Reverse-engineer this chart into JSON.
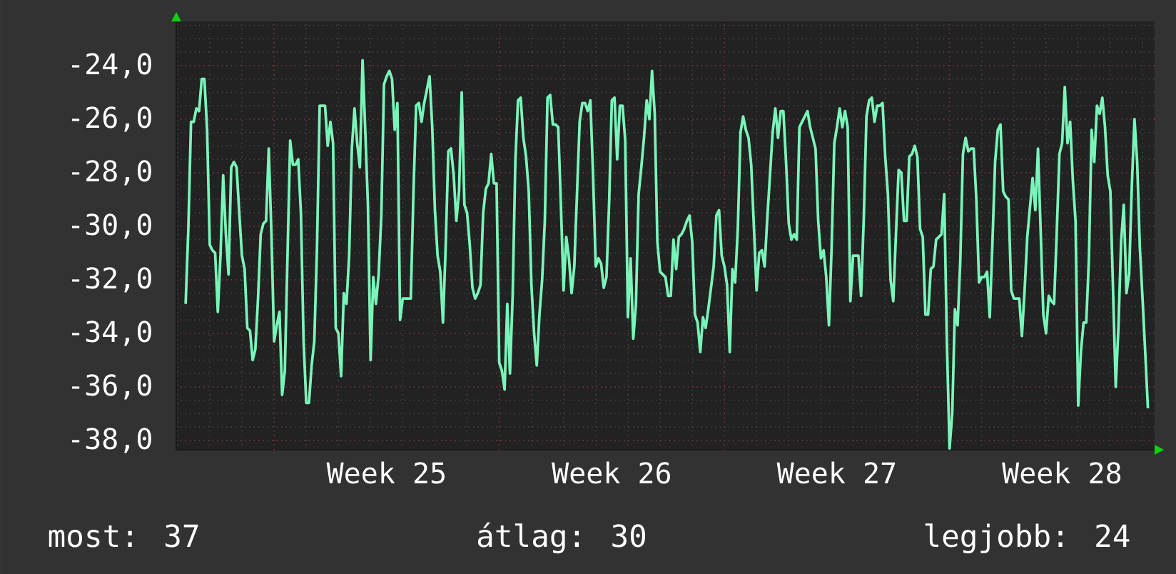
{
  "chart_data": {
    "type": "line",
    "color": "#7af5b9",
    "categories": [
      null,
      null,
      null,
      null,
      null,
      null,
      null,
      null,
      null,
      null,
      null,
      null,
      null,
      null,
      null,
      null,
      null,
      null,
      null,
      null,
      null,
      null,
      null,
      null,
      null,
      null,
      null,
      null,
      null,
      null,
      null,
      null,
      null,
      null,
      null,
      null,
      null,
      null,
      null,
      null,
      null,
      null,
      null,
      null,
      null,
      null,
      null,
      null,
      null,
      null,
      null,
      null,
      null,
      null,
      null,
      null,
      null,
      null,
      null,
      null,
      null,
      null,
      null,
      null,
      null,
      null,
      null,
      null,
      null,
      null,
      null,
      null,
      null,
      null,
      null,
      null,
      null,
      null,
      "Week 25",
      null,
      null,
      null,
      null,
      null,
      null,
      null,
      null,
      null,
      null,
      null,
      null,
      null,
      null,
      null,
      null,
      null,
      null,
      null,
      null,
      null,
      null,
      null,
      null,
      null,
      null,
      null,
      null,
      null,
      null,
      null,
      null,
      null,
      null,
      null,
      null,
      null,
      null,
      null,
      null,
      null,
      null,
      null,
      null,
      null,
      null,
      null,
      null,
      null,
      null,
      null,
      null,
      null,
      null,
      null,
      null,
      null,
      null,
      null,
      null,
      null,
      null,
      null,
      null,
      null,
      null,
      null,
      null,
      null,
      null,
      null,
      null,
      null,
      null,
      null,
      null,
      null,
      null,
      null,
      null,
      null,
      null,
      null,
      "Week 26",
      null,
      null,
      null,
      null,
      null,
      null,
      null,
      null,
      null,
      null,
      null,
      null,
      null,
      null,
      null,
      null,
      null,
      null,
      null,
      null,
      null,
      null,
      null,
      null,
      null,
      null,
      null,
      null,
      null,
      null,
      null,
      null,
      null,
      null,
      null,
      null,
      null,
      null,
      null,
      null,
      null,
      null,
      null,
      null,
      null,
      null,
      null,
      null,
      null,
      null,
      null,
      null,
      null,
      null,
      null,
      null,
      null,
      null,
      null,
      null,
      null,
      null,
      null,
      null,
      null,
      null,
      null,
      null,
      null,
      null,
      null,
      null,
      null,
      null,
      null,
      null,
      null,
      null,
      null,
      null,
      null,
      null,
      null,
      "Week 27",
      null,
      null,
      null,
      null,
      null,
      null,
      null,
      null,
      null,
      null,
      null,
      null,
      null,
      null,
      null,
      null,
      null,
      null,
      null,
      null,
      null,
      null,
      null,
      null,
      null,
      null,
      null,
      null,
      null,
      null,
      null,
      null,
      null,
      null,
      null,
      null,
      null,
      null,
      null,
      null,
      null,
      null,
      null,
      null,
      null,
      null,
      null,
      null,
      null,
      null,
      null,
      null,
      null,
      null,
      null,
      null,
      null,
      null,
      null,
      null,
      null,
      null,
      null,
      null,
      null,
      null,
      null,
      null,
      null,
      null,
      null,
      null,
      null,
      null,
      null,
      null,
      null,
      null,
      null,
      null,
      null,
      null,
      null,
      "Week 28",
      null,
      null,
      null,
      null,
      null,
      null,
      null,
      null,
      null,
      null,
      null,
      null,
      null,
      null,
      null,
      null,
      null,
      null,
      null,
      null,
      null,
      null,
      null,
      null,
      null,
      null,
      null,
      null,
      null,
      null,
      null,
      null,
      null,
      null
    ],
    "values": [
      null,
      null,
      null,
      -32.9,
      -30.1,
      -26.1,
      -26.1,
      -25.6,
      -25.7,
      -24.5,
      -24.5,
      -26.4,
      -30.7,
      -30.9,
      -31.0,
      -33.2,
      -31.1,
      -28.1,
      -30.3,
      -31.8,
      -27.8,
      -27.6,
      -27.8,
      -29.5,
      -31.1,
      -31.6,
      -33.8,
      -33.9,
      -35.0,
      -34.6,
      -32.7,
      -30.3,
      -29.9,
      -29.8,
      -27.1,
      -30.3,
      -34.3,
      -33.7,
      -33.2,
      -36.3,
      -35.4,
      -31.1,
      -26.8,
      -27.7,
      -27.7,
      -27.5,
      -29.5,
      -34.3,
      -36.6,
      -36.6,
      -35.2,
      -34.3,
      -30.8,
      -25.5,
      -25.5,
      -25.5,
      -27.0,
      -26.1,
      -26.9,
      -33.8,
      -34.0,
      -35.6,
      -32.5,
      -32.9,
      -31.1,
      -27.1,
      -25.6,
      -26.9,
      -27.8,
      -23.8,
      -26.4,
      -29.2,
      -35.0,
      -31.9,
      -32.9,
      -31.8,
      -29.6,
      -24.7,
      -24.4,
      -24.2,
      -24.5,
      -26.4,
      -25.4,
      -33.5,
      -32.7,
      -32.7,
      -32.7,
      -32.7,
      -28.7,
      -25.5,
      -25.4,
      -26.1,
      -25.4,
      -24.9,
      -24.4,
      -26.3,
      -29.4,
      -31.1,
      -31.7,
      -33.6,
      -30.8,
      -27.2,
      -27.1,
      -28.1,
      -29.8,
      -28.7,
      -25.0,
      -29.2,
      -29.5,
      -30.7,
      -32.3,
      -32.7,
      -32.5,
      -32.2,
      -29.5,
      -28.6,
      -28.4,
      -27.3,
      -28.4,
      -28.4,
      -35.1,
      -35.4,
      -36.1,
      -32.9,
      -35.5,
      -32.6,
      -27.6,
      -25.3,
      -25.2,
      -26.7,
      -27.4,
      -28.7,
      -32.2,
      -34.0,
      -35.2,
      -33.3,
      -32.0,
      -29.8,
      -25.2,
      -25.1,
      -26.2,
      -26.2,
      -26.3,
      -29.2,
      -32.4,
      -30.4,
      -31.2,
      -32.5,
      -31.5,
      -28.8,
      -26.1,
      -25.4,
      -25.4,
      -25.7,
      -25.3,
      -28.1,
      -31.5,
      -31.2,
      -31.4,
      -32.3,
      -31.9,
      -29.1,
      -25.3,
      -25.2,
      -27.5,
      -25.5,
      -25.5,
      -26.8,
      -33.4,
      -31.2,
      -34.2,
      -32.9,
      -28.8,
      -27.8,
      -26.7,
      -25.3,
      -26.0,
      -24.2,
      -25.8,
      -30.6,
      -31.7,
      -31.8,
      -31.9,
      -32.6,
      -32.6,
      -30.5,
      -31.6,
      -30.4,
      -30.3,
      -30.1,
      -29.8,
      -29.6,
      -30.6,
      -33.3,
      -33.6,
      -34.7,
      -33.4,
      -33.8,
      -33.1,
      -32.3,
      -31.5,
      -29.6,
      -29.4,
      -31.1,
      -31.5,
      -32.2,
      -34.7,
      -31.6,
      -32.1,
      -30.1,
      -26.5,
      -25.9,
      -26.4,
      -26.7,
      -27.7,
      -30.0,
      -32.4,
      -31.0,
      -30.9,
      -31.5,
      -29.7,
      -28.1,
      -26.5,
      -25.6,
      -26.7,
      -25.7,
      -25.7,
      -27.6,
      -29.9,
      -30.5,
      -30.3,
      -30.5,
      -26.3,
      -26.1,
      -25.9,
      -25.7,
      -26.3,
      -26.7,
      -27.1,
      -29.8,
      -31.2,
      -30.9,
      -31.9,
      -33.7,
      -30.8,
      -26.9,
      -26.3,
      -25.6,
      -26.3,
      -25.7,
      -26.3,
      -32.8,
      -31.1,
      -31.1,
      -31.1,
      -32.6,
      -29.7,
      -25.9,
      -25.3,
      -25.2,
      -26.1,
      -25.5,
      -25.5,
      -25.4,
      -27.4,
      -28.8,
      -32.0,
      -32.8,
      -30.3,
      -27.9,
      -28.0,
      -29.8,
      -29.8,
      -27.4,
      -27.3,
      -27.0,
      -27.4,
      -30.1,
      -30.4,
      -33.3,
      -33.3,
      -31.6,
      -31.5,
      -30.5,
      -30.4,
      -30.3,
      -28.8,
      -34.3,
      -38.3,
      -37.0,
      -33.1,
      -33.7,
      -31.3,
      -27.3,
      -26.7,
      -27.2,
      -27.1,
      -27.1,
      -29.0,
      -32.1,
      -31.9,
      -31.9,
      -31.7,
      -33.4,
      -30.6,
      -27.6,
      -26.4,
      -26.2,
      -28.7,
      -28.9,
      -29.0,
      -32.4,
      -32.7,
      -32.7,
      -32.7,
      -34.1,
      -32.4,
      -30.4,
      -29.3,
      -28.2,
      -29.4,
      -27.1,
      -30.2,
      -33.3,
      -34.0,
      -32.6,
      -32.8,
      -32.9,
      -30.2,
      -27.3,
      -26.9,
      -24.8,
      -26.9,
      -26.1,
      -28.3,
      -29.8,
      -36.7,
      -34.7,
      -33.6,
      -33.6,
      -31.2,
      -26.4,
      -27.6,
      -25.5,
      -25.8,
      -25.2,
      -26.3,
      -28.1,
      -28.7,
      -32.4,
      -36.0,
      -33.8,
      -30.6,
      -29.2,
      -32.5,
      -31.8,
      -28.5,
      -26.0,
      -27.6,
      -30.8,
      -32.7,
      -34.7,
      -36.8,
      null,
      null
    ],
    "ylim": [
      -38.35,
      -22.35
    ],
    "yticks": [
      {
        "value": -38,
        "label": "-38,0"
      },
      {
        "value": -36,
        "label": "-36,0"
      },
      {
        "value": -34,
        "label": "-34,0"
      },
      {
        "value": -32,
        "label": "-32,0"
      },
      {
        "value": -30,
        "label": "-30,0"
      },
      {
        "value": -28,
        "label": "-28,0"
      },
      {
        "value": -26,
        "label": "-26,0"
      },
      {
        "value": -24,
        "label": "-24,0"
      }
    ],
    "grid": true,
    "annotations": [
      "most: 37",
      "átlag: 30",
      "legjobb: 24"
    ]
  }
}
